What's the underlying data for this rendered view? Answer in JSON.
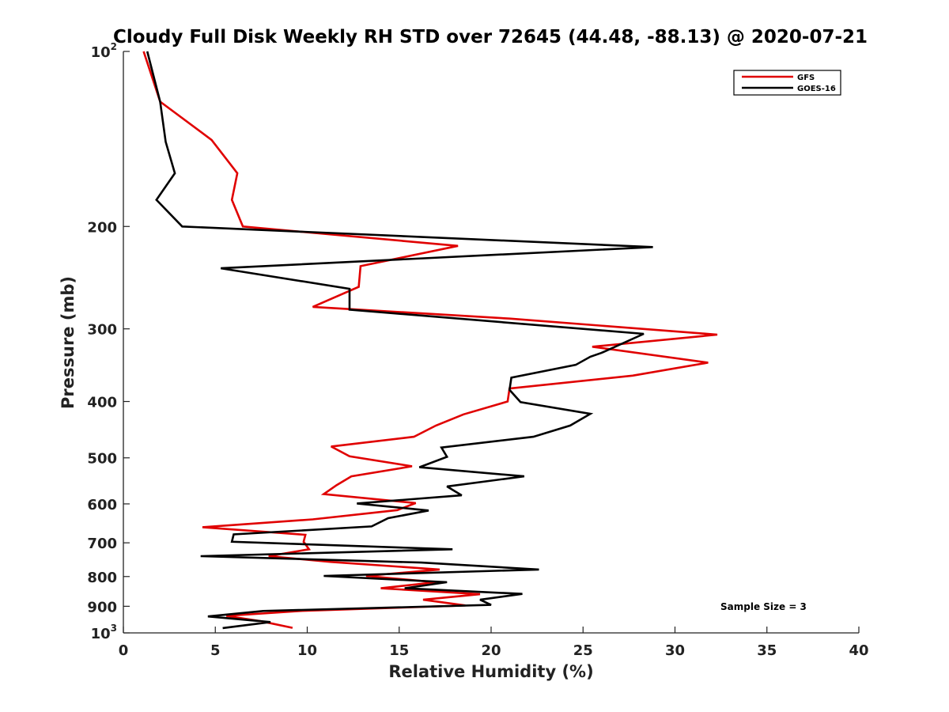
{
  "chart_data": {
    "type": "line",
    "title": "Cloudy Full Disk Weekly RH STD over 72645 (44.48, -88.13) @ 2020-07-21",
    "xlabel": "Relative Humidity (%)",
    "ylabel": "Pressure (mb)",
    "xlim": [
      0,
      40
    ],
    "ylim": [
      1000,
      100
    ],
    "y_scale": "log",
    "y_reversed": true,
    "grid": false,
    "legend_position": "top-right",
    "x_ticks": [
      {
        "value": 0,
        "label": "0"
      },
      {
        "value": 5,
        "label": "5"
      },
      {
        "value": 10,
        "label": "10"
      },
      {
        "value": 15,
        "label": "15"
      },
      {
        "value": 20,
        "label": "20"
      },
      {
        "value": 25,
        "label": "25"
      },
      {
        "value": 30,
        "label": "30"
      },
      {
        "value": 35,
        "label": "35"
      },
      {
        "value": 40,
        "label": "40"
      }
    ],
    "y_ticks": [
      {
        "value": 100,
        "label": "10",
        "sup": "2"
      },
      {
        "value": 200,
        "label": "200",
        "sup": ""
      },
      {
        "value": 300,
        "label": "300",
        "sup": ""
      },
      {
        "value": 400,
        "label": "400",
        "sup": ""
      },
      {
        "value": 500,
        "label": "500",
        "sup": ""
      },
      {
        "value": 600,
        "label": "600",
        "sup": ""
      },
      {
        "value": 700,
        "label": "700",
        "sup": ""
      },
      {
        "value": 800,
        "label": "800",
        "sup": ""
      },
      {
        "value": 900,
        "label": "900",
        "sup": ""
      },
      {
        "value": 1000,
        "label": "10",
        "sup": "3"
      }
    ],
    "annotation": "Sample Size = 3",
    "series": [
      {
        "name": "GFS",
        "color": "#e00000",
        "points": [
          [
            1.1,
            100
          ],
          [
            2.0,
            122
          ],
          [
            4.8,
            142
          ],
          [
            6.2,
            162
          ],
          [
            5.9,
            180
          ],
          [
            6.5,
            200
          ],
          [
            18.2,
            216
          ],
          [
            12.9,
            234
          ],
          [
            12.8,
            254
          ],
          [
            10.3,
            275
          ],
          [
            21.0,
            288
          ],
          [
            32.3,
            307
          ],
          [
            25.5,
            322
          ],
          [
            31.8,
            343
          ],
          [
            27.7,
            361
          ],
          [
            21.0,
            380
          ],
          [
            20.9,
            400
          ],
          [
            18.5,
            421
          ],
          [
            17.0,
            440
          ],
          [
            15.8,
            460
          ],
          [
            11.3,
            478
          ],
          [
            12.3,
            497
          ],
          [
            15.7,
            517
          ],
          [
            12.4,
            538
          ],
          [
            11.6,
            557
          ],
          [
            10.9,
            577
          ],
          [
            15.9,
            598
          ],
          [
            14.9,
            615
          ],
          [
            10.3,
            638
          ],
          [
            4.3,
            658
          ],
          [
            9.9,
            678
          ],
          [
            9.8,
            697
          ],
          [
            10.1,
            718
          ],
          [
            7.9,
            738
          ],
          [
            11.3,
            755
          ],
          [
            17.2,
            778
          ],
          [
            13.2,
            798
          ],
          [
            17.0,
            818
          ],
          [
            14.0,
            838
          ],
          [
            19.4,
            858
          ],
          [
            16.3,
            877
          ],
          [
            18.6,
            897
          ],
          [
            9.6,
            917
          ],
          [
            5.6,
            935
          ],
          [
            7.5,
            955
          ],
          [
            9.2,
            980
          ]
        ]
      },
      {
        "name": "GOES-16",
        "color": "#000000",
        "points": [
          [
            1.3,
            100
          ],
          [
            2.0,
            122
          ],
          [
            2.3,
            143
          ],
          [
            2.8,
            162
          ],
          [
            1.8,
            180
          ],
          [
            3.2,
            200
          ],
          [
            28.8,
            217
          ],
          [
            5.3,
            236
          ],
          [
            12.3,
            256
          ],
          [
            12.3,
            278
          ],
          [
            28.3,
            306
          ],
          [
            26.0,
            330
          ],
          [
            25.4,
            335
          ],
          [
            24.6,
            346
          ],
          [
            21.1,
            364
          ],
          [
            21.0,
            382
          ],
          [
            21.6,
            401
          ],
          [
            25.4,
            420
          ],
          [
            24.3,
            440
          ],
          [
            22.3,
            460
          ],
          [
            17.3,
            480
          ],
          [
            17.6,
            498
          ],
          [
            16.1,
            519
          ],
          [
            21.8,
            538
          ],
          [
            17.6,
            560
          ],
          [
            18.4,
            580
          ],
          [
            12.7,
            599
          ],
          [
            16.6,
            616
          ],
          [
            14.4,
            635
          ],
          [
            13.5,
            656
          ],
          [
            6.0,
            677
          ],
          [
            5.9,
            697
          ],
          [
            17.9,
            718
          ],
          [
            4.2,
            738
          ],
          [
            16.2,
            757
          ],
          [
            22.6,
            778
          ],
          [
            10.9,
            798
          ],
          [
            17.6,
            818
          ],
          [
            15.3,
            838
          ],
          [
            21.7,
            857
          ],
          [
            19.4,
            877
          ],
          [
            20.0,
            895
          ],
          [
            7.6,
            917
          ],
          [
            4.6,
            937
          ],
          [
            8.0,
            958
          ],
          [
            5.4,
            981
          ]
        ]
      }
    ]
  }
}
